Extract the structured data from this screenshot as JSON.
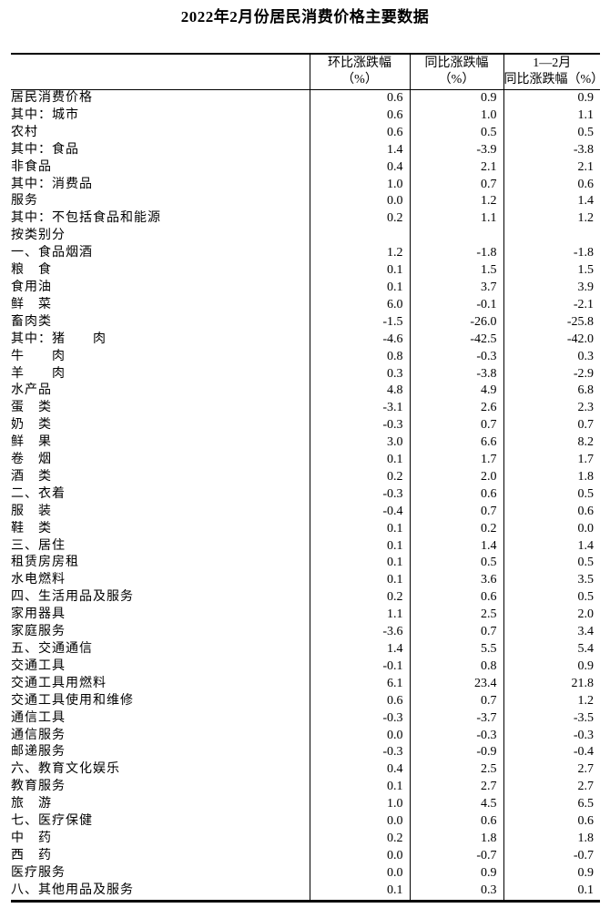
{
  "title": "2022年2月份居民消费价格主要数据",
  "table": {
    "headers": {
      "label_blank": "",
      "mom_line1": "环比涨跌幅",
      "mom_line2": "（%）",
      "yoy_line1": "同比涨跌幅",
      "yoy_line2": "（%）",
      "ytd_line1": "1—2月",
      "ytd_line2": "同比涨跌幅（%）"
    },
    "rows": [
      {
        "label": "居民消费价格",
        "indent": 0,
        "mom": "0.6",
        "yoy": "0.9",
        "ytd": "0.9"
      },
      {
        "label": "其中：城市",
        "indent": 1,
        "mom": "0.6",
        "yoy": "1.0",
        "ytd": "1.1"
      },
      {
        "label": "农村",
        "indent": 2,
        "mom": "0.6",
        "yoy": "0.5",
        "ytd": "0.5"
      },
      {
        "label": "其中：食品",
        "indent": 1,
        "mom": "1.4",
        "yoy": "-3.9",
        "ytd": "-3.8"
      },
      {
        "label": "非食品",
        "indent": 2,
        "mom": "0.4",
        "yoy": "2.1",
        "ytd": "2.1"
      },
      {
        "label": "其中：消费品",
        "indent": 1,
        "mom": "1.0",
        "yoy": "0.7",
        "ytd": "0.6"
      },
      {
        "label": "服务",
        "indent": 2,
        "mom": "0.0",
        "yoy": "1.2",
        "ytd": "1.4"
      },
      {
        "label": "其中：不包括食品和能源",
        "indent": 1,
        "mom": "0.2",
        "yoy": "1.1",
        "ytd": "1.2"
      },
      {
        "label": "按类别分",
        "indent": 0,
        "mom": "",
        "yoy": "",
        "ytd": ""
      },
      {
        "label": "一、食品烟酒",
        "indent": 0,
        "mom": "1.2",
        "yoy": "-1.8",
        "ytd": "-1.8"
      },
      {
        "label": "粮　食",
        "indent": 1,
        "mom": "0.1",
        "yoy": "1.5",
        "ytd": "1.5"
      },
      {
        "label": "食用油",
        "indent": 1,
        "mom": "0.1",
        "yoy": "3.7",
        "ytd": "3.9"
      },
      {
        "label": "鲜　菜",
        "indent": 1,
        "mom": "6.0",
        "yoy": "-0.1",
        "ytd": "-2.1"
      },
      {
        "label": "畜肉类",
        "indent": 1,
        "mom": "-1.5",
        "yoy": "-26.0",
        "ytd": "-25.8"
      },
      {
        "label": "其中：猪　　肉",
        "indent": 3,
        "mom": "-4.6",
        "yoy": "-42.5",
        "ytd": "-42.0"
      },
      {
        "label": "牛　　肉",
        "indent": 4,
        "mom": "0.8",
        "yoy": "-0.3",
        "ytd": "0.3"
      },
      {
        "label": "羊　　肉",
        "indent": 4,
        "mom": "0.3",
        "yoy": "-3.8",
        "ytd": "-2.9"
      },
      {
        "label": "水产品",
        "indent": 1,
        "mom": "4.8",
        "yoy": "4.9",
        "ytd": "6.8"
      },
      {
        "label": "蛋　类",
        "indent": 1,
        "mom": "-3.1",
        "yoy": "2.6",
        "ytd": "2.3"
      },
      {
        "label": "奶　类",
        "indent": 1,
        "mom": "-0.3",
        "yoy": "0.7",
        "ytd": "0.7"
      },
      {
        "label": "鲜　果",
        "indent": 1,
        "mom": "3.0",
        "yoy": "6.6",
        "ytd": "8.2"
      },
      {
        "label": "卷　烟",
        "indent": 1,
        "mom": "0.1",
        "yoy": "1.7",
        "ytd": "1.7"
      },
      {
        "label": "酒　类",
        "indent": 1,
        "mom": "0.2",
        "yoy": "2.0",
        "ytd": "1.8"
      },
      {
        "label": "二、衣着",
        "indent": 0,
        "mom": "-0.3",
        "yoy": "0.6",
        "ytd": "0.5"
      },
      {
        "label": "服　装",
        "indent": 1,
        "mom": "-0.4",
        "yoy": "0.7",
        "ytd": "0.6"
      },
      {
        "label": "鞋　类",
        "indent": 1,
        "mom": "0.1",
        "yoy": "0.2",
        "ytd": "0.0"
      },
      {
        "label": "三、居住",
        "indent": 0,
        "mom": "0.1",
        "yoy": "1.4",
        "ytd": "1.4"
      },
      {
        "label": "租赁房房租",
        "indent": 1,
        "mom": "0.1",
        "yoy": "0.5",
        "ytd": "0.5"
      },
      {
        "label": "水电燃料",
        "indent": 1,
        "mom": "0.1",
        "yoy": "3.6",
        "ytd": "3.5"
      },
      {
        "label": "四、生活用品及服务",
        "indent": 0,
        "mom": "0.2",
        "yoy": "0.6",
        "ytd": "0.5"
      },
      {
        "label": "家用器具",
        "indent": 1,
        "mom": "1.1",
        "yoy": "2.5",
        "ytd": "2.0"
      },
      {
        "label": "家庭服务",
        "indent": 1,
        "mom": "-3.6",
        "yoy": "0.7",
        "ytd": "3.4"
      },
      {
        "label": "五、交通通信",
        "indent": 0,
        "mom": "1.4",
        "yoy": "5.5",
        "ytd": "5.4"
      },
      {
        "label": "交通工具",
        "indent": 1,
        "mom": "-0.1",
        "yoy": "0.8",
        "ytd": "0.9"
      },
      {
        "label": "交通工具用燃料",
        "indent": 1,
        "mom": "6.1",
        "yoy": "23.4",
        "ytd": "21.8"
      },
      {
        "label": "交通工具使用和维修",
        "indent": 1,
        "mom": "0.6",
        "yoy": "0.7",
        "ytd": "1.2"
      },
      {
        "label": "通信工具",
        "indent": 1,
        "mom": "-0.3",
        "yoy": "-3.7",
        "ytd": "-3.5"
      },
      {
        "label": "通信服务",
        "indent": 1,
        "mom": "0.0",
        "yoy": "-0.3",
        "ytd": "-0.3"
      },
      {
        "label": "邮递服务",
        "indent": 1,
        "mom": "-0.3",
        "yoy": "-0.9",
        "ytd": "-0.4"
      },
      {
        "label": "六、教育文化娱乐",
        "indent": 0,
        "mom": "0.4",
        "yoy": "2.5",
        "ytd": "2.7"
      },
      {
        "label": "教育服务",
        "indent": 1,
        "mom": "0.1",
        "yoy": "2.7",
        "ytd": "2.7"
      },
      {
        "label": "旅　游",
        "indent": 1,
        "mom": "1.0",
        "yoy": "4.5",
        "ytd": "6.5"
      },
      {
        "label": "七、医疗保健",
        "indent": 0,
        "mom": "0.0",
        "yoy": "0.6",
        "ytd": "0.6"
      },
      {
        "label": "中　药",
        "indent": 1,
        "mom": "0.2",
        "yoy": "1.8",
        "ytd": "1.8"
      },
      {
        "label": "西　药",
        "indent": 1,
        "mom": "0.0",
        "yoy": "-0.7",
        "ytd": "-0.7"
      },
      {
        "label": "医疗服务",
        "indent": 1,
        "mom": "0.0",
        "yoy": "0.9",
        "ytd": "0.9"
      },
      {
        "label": "八、其他用品及服务",
        "indent": 0,
        "mom": "0.1",
        "yoy": "0.3",
        "ytd": "0.1"
      }
    ]
  }
}
